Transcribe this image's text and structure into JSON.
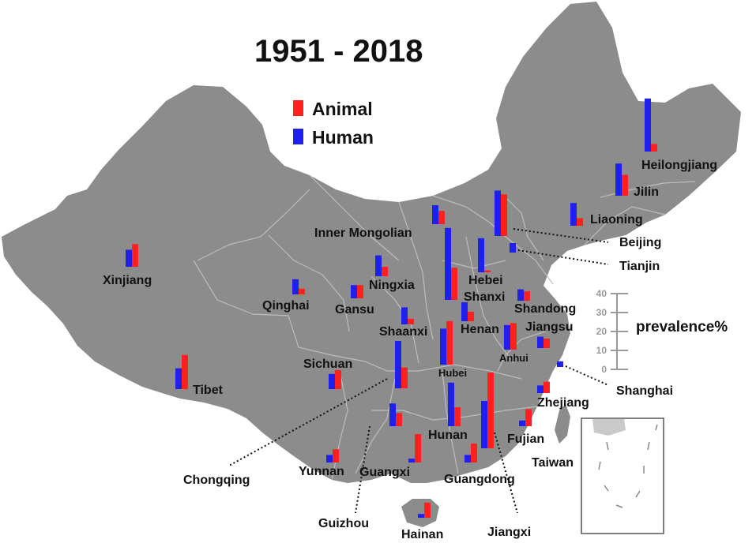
{
  "title": "1951 - 2018",
  "colors": {
    "animal": "#ff2020",
    "human": "#2020ee",
    "land": "#8c8c8c",
    "border": "#bdbdbd"
  },
  "legend": {
    "animal_label": "Animal",
    "human_label": "Human"
  },
  "scale": {
    "label": "prevalence%",
    "ticks": [
      "0",
      "10",
      "20",
      "30",
      "40"
    ],
    "max": 40
  },
  "provinces": [
    {
      "name": "Heilongjiang",
      "human": 28,
      "animal": 4
    },
    {
      "name": "Jilin",
      "human": 17,
      "animal": 11
    },
    {
      "name": "Liaoning",
      "human": 12,
      "animal": 4
    },
    {
      "name": "Beijing",
      "human": 24,
      "animal": 22
    },
    {
      "name": "Tianjin",
      "human": 5,
      "animal": 0
    },
    {
      "name": "Inner Mongolian",
      "human": 10,
      "animal": 7
    },
    {
      "name": "Hebei",
      "human": 18,
      "animal": 1
    },
    {
      "name": "Shanxi",
      "human": 38,
      "animal": 17
    },
    {
      "name": "Shandong",
      "human": 6,
      "animal": 5
    },
    {
      "name": "Henan",
      "human": 10,
      "animal": 5
    },
    {
      "name": "Jiangsu",
      "human": 6,
      "animal": 5
    },
    {
      "name": "Anhui",
      "human": 13,
      "animal": 14
    },
    {
      "name": "Shanghai",
      "human": 3,
      "animal": 0
    },
    {
      "name": "Zhejiang",
      "human": 4,
      "animal": 6
    },
    {
      "name": "Fujian",
      "human": 3,
      "animal": 9
    },
    {
      "name": "Taiwan",
      "human": 0,
      "animal": 0
    },
    {
      "name": "Jiangxi",
      "human": 25,
      "animal": 40
    },
    {
      "name": "Hubei",
      "human": 19,
      "animal": 23
    },
    {
      "name": "Hunan",
      "human": 23,
      "animal": 10
    },
    {
      "name": "Guangdong",
      "human": 4,
      "animal": 10
    },
    {
      "name": "Guangxi",
      "human": 2,
      "animal": 15
    },
    {
      "name": "Hainan",
      "human": 2,
      "animal": 8
    },
    {
      "name": "Chongqing",
      "human": 25,
      "animal": 11
    },
    {
      "name": "Guizhou",
      "human": 12,
      "animal": 7
    },
    {
      "name": "Yunnan",
      "human": 4,
      "animal": 7
    },
    {
      "name": "Sichuan",
      "human": 8,
      "animal": 10
    },
    {
      "name": "Shaanxi",
      "human": 9,
      "animal": 3
    },
    {
      "name": "Ningxia",
      "human": 11,
      "animal": 5
    },
    {
      "name": "Gansu",
      "human": 7,
      "animal": 7
    },
    {
      "name": "Qinghai",
      "human": 8,
      "animal": 3
    },
    {
      "name": "Xinjiang",
      "human": 9,
      "animal": 12
    },
    {
      "name": "Tibet",
      "human": 11,
      "animal": 18
    }
  ]
}
